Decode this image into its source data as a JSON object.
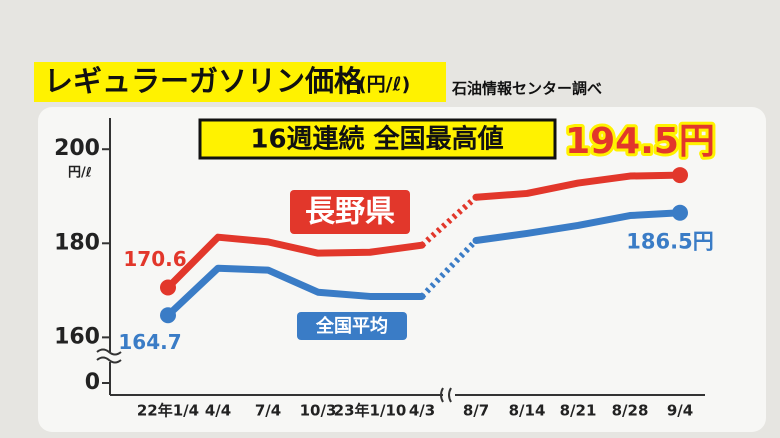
{
  "chart_data": {
    "type": "line",
    "title": "レギュラーガソリン価格",
    "title_unit": "(円/ℓ)",
    "source": "石油情報センター調べ",
    "headline": "16週連続 全国最高値",
    "y_unit": "円/ℓ",
    "categories": [
      "22年1/4",
      "4/4",
      "7/4",
      "10/3",
      "23年1/10",
      "4/3",
      "8/7",
      "8/14",
      "8/21",
      "8/28",
      "9/4"
    ],
    "x_break_after_category": "4/3",
    "series": [
      {
        "name": "長野県",
        "color": "#e2372b",
        "values": [
          170.6,
          181.3,
          180.3,
          177.9,
          178.1,
          179.6,
          189.8,
          190.6,
          192.8,
          194.3,
          194.5
        ],
        "value_labels": [
          "170.6",
          null,
          null,
          null,
          null,
          null,
          null,
          null,
          null,
          null,
          "194.5円"
        ]
      },
      {
        "name": "全国平均",
        "color": "#3a7cc6",
        "values": [
          164.7,
          174.7,
          174.3,
          169.6,
          168.7,
          168.7,
          180.6,
          182.1,
          183.8,
          185.9,
          186.5
        ],
        "value_labels": [
          "164.7",
          null,
          null,
          null,
          null,
          null,
          null,
          null,
          null,
          null,
          "186.5円"
        ]
      }
    ],
    "ylim": [
      152,
      206
    ],
    "yticks": [
      0,
      160,
      180,
      200
    ],
    "y_axis_break": true
  }
}
